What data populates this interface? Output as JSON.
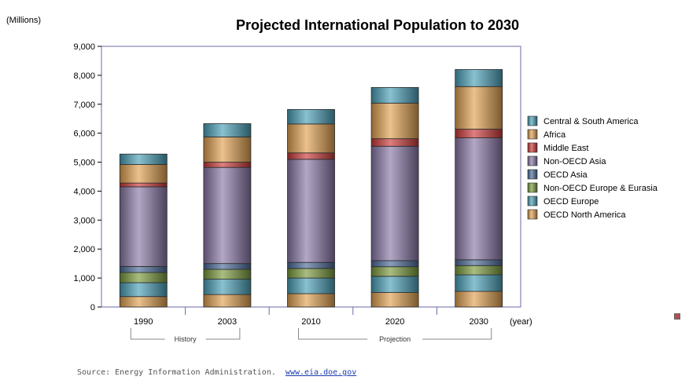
{
  "chart_data": {
    "type": "bar",
    "stacked": true,
    "title": "Projected International Population to 2030",
    "units_label": "(Millions)",
    "x_unit_label": "(year)",
    "categories": [
      "1990",
      "2003",
      "2010",
      "2020",
      "2030"
    ],
    "groups": [
      {
        "label": "History",
        "categories": [
          "1990",
          "2003"
        ]
      },
      {
        "label": "Projection",
        "categories": [
          "2010",
          "2020",
          "2030"
        ]
      }
    ],
    "ylim": [
      0,
      9000
    ],
    "yticks": [
      "0",
      "1,000",
      "2,000",
      "3,000",
      "4,000",
      "5,000",
      "6,000",
      "7,000",
      "8,000",
      "9,000"
    ],
    "series": [
      {
        "name": "OECD North America",
        "color": "#e0a050",
        "values": [
          360,
          430,
          460,
          500,
          540
        ]
      },
      {
        "name": "OECD Europe",
        "color": "#4aa0b8",
        "values": [
          480,
          530,
          540,
          560,
          570
        ]
      },
      {
        "name": "Non-OECD Europe & Eurasia",
        "color": "#7a9a3c",
        "values": [
          350,
          340,
          330,
          330,
          320
        ]
      },
      {
        "name": "OECD Asia",
        "color": "#4a6a98",
        "values": [
          210,
          200,
          210,
          210,
          200
        ]
      },
      {
        "name": "Non-OECD Asia",
        "color": "#8a78a8",
        "values": [
          2750,
          3320,
          3560,
          3950,
          4210
        ]
      },
      {
        "name": "Middle East",
        "color": "#cc3838",
        "values": [
          130,
          180,
          220,
          260,
          300
        ]
      },
      {
        "name": "Africa",
        "color": "#e0a050",
        "values": [
          640,
          870,
          1000,
          1230,
          1470
        ]
      },
      {
        "name": "Central & South America",
        "color": "#4aa0b8",
        "values": [
          360,
          460,
          500,
          540,
          590
        ]
      }
    ],
    "legend_position": "right",
    "grid": false
  },
  "source": {
    "text": "Source: Energy Information Administration.",
    "link": "www.eia.doe.gov"
  }
}
